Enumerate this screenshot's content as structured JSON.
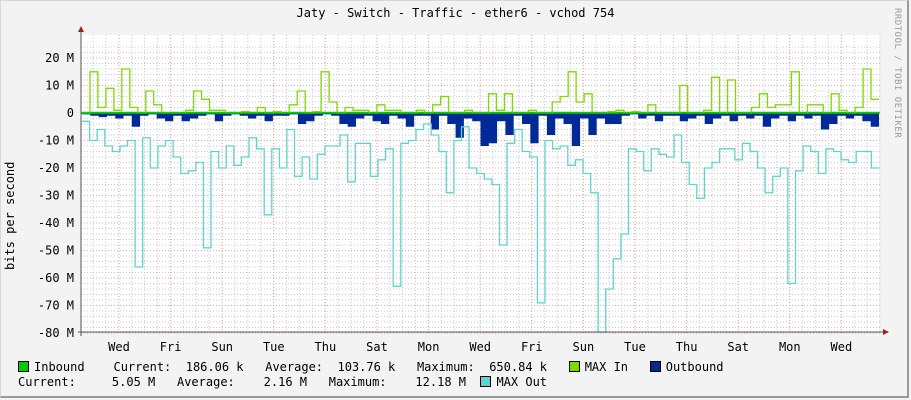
{
  "title": "Jaty - Switch - Traffic - ether6 - vchod 754",
  "watermark": "RRDTOOL / TOBI OETIKER",
  "colors": {
    "inbound": "#00cc00",
    "max_in": "#7fd900",
    "outbound": "#002a97",
    "max_out": "#5fd4cf",
    "background": "#f3f3f3",
    "plot_bg": "#ffffff",
    "grid_major": "#e8a0a0",
    "grid_minor": "#c8c8c8",
    "axis_arrow": "#a02020"
  },
  "legend": {
    "inbound": {
      "label": "Inbound",
      "current_label": "Current:",
      "current": "186.06 k",
      "average_label": "Average:",
      "average": "103.76 k",
      "maximum_label": "Maximum:",
      "maximum": "650.84 k"
    },
    "max_in": {
      "label": "MAX In"
    },
    "outbound": {
      "label": "Outbound",
      "current_label": "Current:",
      "current": "5.05 M",
      "average_label": "Average:",
      "average": "2.16 M",
      "maximum_label": "Maximum:",
      "maximum": "12.18 M"
    },
    "max_out": {
      "label": "MAX Out"
    }
  },
  "chart_data": {
    "type": "area",
    "title": "Jaty - Switch - Traffic - ether6 - vchod 754",
    "xlabel": "",
    "ylabel": "bits per second",
    "ylim": [
      -80000000,
      25000000
    ],
    "y_ticks": [
      "20 M",
      "10 M",
      "0",
      "-10 M",
      "-20 M",
      "-30 M",
      "-40 M",
      "-50 M",
      "-60 M",
      "-70 M",
      "-80 M"
    ],
    "x_ticks": [
      "Wed",
      "Fri",
      "Sun",
      "Tue",
      "Thu",
      "Sat",
      "Mon",
      "Wed",
      "Fri",
      "Sun",
      "Tue",
      "Thu",
      "Sat",
      "Mon",
      "Wed"
    ],
    "grid": true,
    "legend_position": "bottom",
    "series": [
      {
        "name": "Inbound",
        "type": "area",
        "color": "#00cc00",
        "unit": "bits/s",
        "values_M": [
          0.2,
          0.2,
          0.2,
          0.2,
          0.2,
          0.2,
          0.2,
          0.2,
          0.2,
          0.2,
          0.2,
          0.2,
          0.2,
          0.2,
          0.2,
          0.2,
          0.2,
          0.2,
          0.2,
          0.2,
          0.2,
          0.2,
          0.2,
          0.2,
          0.2,
          0.2,
          0.2,
          0.2,
          0.2,
          0.2,
          0.2,
          0.2,
          0.2,
          0.2,
          0.2,
          0.2,
          0.2,
          0.2,
          0.2,
          0.2
        ]
      },
      {
        "name": "MAX In",
        "type": "line",
        "color": "#7fd900",
        "unit": "bits/s",
        "values_M": [
          0,
          15,
          2,
          9,
          1,
          16,
          2,
          0,
          8,
          3,
          0,
          0,
          0,
          1,
          8,
          5,
          1,
          1,
          0,
          0,
          0.5,
          0,
          2,
          0,
          0.5,
          0,
          3,
          8,
          0,
          0.5,
          15,
          4,
          0,
          2,
          1,
          1,
          0,
          3,
          1,
          1,
          0,
          0,
          1,
          0,
          3,
          6,
          0,
          0,
          1,
          0,
          0,
          7,
          1,
          7,
          0,
          0,
          1,
          0,
          0,
          4,
          6,
          15,
          4,
          7,
          0,
          0,
          0.5,
          1,
          0,
          0.5,
          0,
          3,
          0,
          0,
          0,
          10,
          0,
          0,
          1,
          13,
          0,
          12,
          0,
          0,
          2,
          7,
          2,
          3,
          3,
          15,
          0,
          3,
          3,
          0,
          7,
          1,
          0,
          2,
          16,
          5
        ]
      },
      {
        "name": "Outbound",
        "type": "area",
        "color": "#002a97",
        "unit": "bits/s",
        "values_M": [
          -0.5,
          -1,
          -1.5,
          -1,
          -2,
          -1,
          -5,
          -1,
          -0.5,
          -2,
          -3,
          -1,
          -3,
          -2,
          -1,
          -0.5,
          -3,
          -1,
          -0.5,
          -1,
          -2,
          -1,
          -3,
          -1,
          -1,
          -0.5,
          -4,
          -3,
          -1,
          -0.5,
          -1,
          -4,
          -5,
          -2,
          -1,
          -3,
          -4,
          -1,
          -2,
          -5,
          -1,
          -1,
          -6,
          -1,
          -4,
          -9,
          -2,
          -3,
          -12,
          -11,
          -3,
          -8,
          -1,
          -4,
          -11,
          -1,
          -8,
          -2,
          -4,
          -12,
          -2,
          -8,
          -2,
          -4,
          -4,
          -1,
          -0.5,
          -2,
          -1,
          -3,
          -1,
          -1,
          -3,
          -2,
          -1,
          -4,
          -2,
          -1,
          -3,
          -1,
          -2,
          -1,
          -5,
          -2,
          -1,
          -3,
          -1,
          -2,
          -1,
          -6,
          -4,
          -1,
          -2,
          -1,
          -3,
          -5
        ]
      },
      {
        "name": "MAX Out",
        "type": "line",
        "color": "#5fd4cf",
        "unit": "bits/s",
        "values_M": [
          -3,
          -10,
          -6,
          -12,
          -14,
          -12,
          -10,
          -56,
          -9,
          -20,
          -12,
          -10,
          -16,
          -22,
          -21,
          -18,
          -49,
          -14,
          -20,
          -12,
          -19,
          -16,
          -9,
          -13,
          -37,
          -13,
          -20,
          -6,
          -23,
          -16,
          -24,
          -15,
          -12,
          -12,
          -8,
          -25,
          -11,
          -11,
          -23,
          -17,
          -13,
          -63,
          -11,
          -10,
          -6,
          -4,
          -8,
          -14,
          -29,
          -10,
          -5,
          -20,
          -22,
          -24,
          -26,
          -48,
          -11,
          -6,
          -14,
          -16,
          -69,
          -10,
          -13,
          -12,
          -19,
          -17,
          -22,
          -29,
          -81,
          -64,
          -53,
          -44,
          -13,
          -14,
          -21,
          -13,
          -15,
          -16,
          -8,
          -18,
          -26,
          -31,
          -20,
          -18,
          -13,
          -13,
          -17,
          -11,
          -14,
          -20,
          -29,
          -23,
          -20,
          -62,
          -21,
          -12,
          -14,
          -22,
          -13,
          -14,
          -17,
          -18,
          -14,
          -14,
          -20
        ]
      }
    ]
  }
}
